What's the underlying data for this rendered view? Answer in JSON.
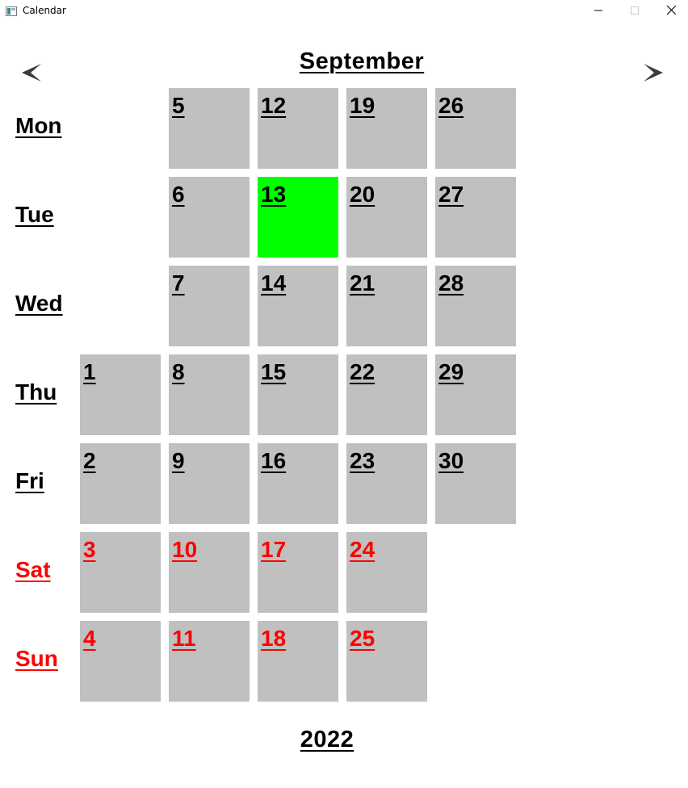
{
  "window": {
    "title": "Calendar",
    "icon": "calendar-app-icon",
    "controls": [
      "minimize-icon",
      "maximize-icon",
      "close-icon"
    ]
  },
  "calendar": {
    "month": "September",
    "year": "2022",
    "today": "13",
    "prev_icon": "chevron-left-icon",
    "next_icon": "chevron-right-icon",
    "colors": {
      "cell": "#c0c0c0",
      "today": "#00ff00",
      "weekend_text": "#ff0000",
      "text": "#000000"
    },
    "weekdays": [
      {
        "label": "Mon",
        "weekend": false
      },
      {
        "label": "Tue",
        "weekend": false
      },
      {
        "label": "Wed",
        "weekend": false
      },
      {
        "label": "Thu",
        "weekend": false
      },
      {
        "label": "Fri",
        "weekend": false
      },
      {
        "label": "Sat",
        "weekend": true
      },
      {
        "label": "Sun",
        "weekend": true
      }
    ],
    "weeks": [
      [
        "",
        "",
        "",
        "1",
        "2",
        "3",
        "4"
      ],
      [
        "5",
        "6",
        "7",
        "8",
        "9",
        "10",
        "11"
      ],
      [
        "12",
        "13",
        "14",
        "15",
        "16",
        "17",
        "18"
      ],
      [
        "19",
        "20",
        "21",
        "22",
        "23",
        "24",
        "25"
      ],
      [
        "26",
        "27",
        "28",
        "29",
        "30",
        "",
        ""
      ]
    ]
  }
}
